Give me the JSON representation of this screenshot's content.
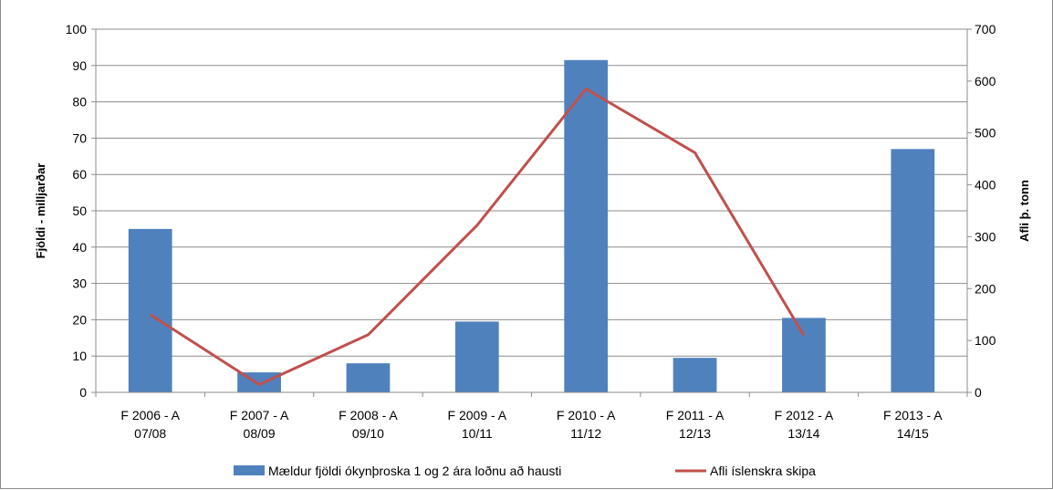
{
  "chart_data": {
    "type": "bar",
    "categories": [
      [
        "F 2006 - A",
        "07/08"
      ],
      [
        "F 2007 - A",
        "08/09"
      ],
      [
        "F 2008 - A",
        "09/10"
      ],
      [
        "F 2009 - A",
        "10/11"
      ],
      [
        "F 2010 - A",
        "11/12"
      ],
      [
        "F 2011 - A",
        "12/13"
      ],
      [
        "F 2012 - A",
        "13/14"
      ],
      [
        "F 2013 - A",
        "14/15"
      ]
    ],
    "ylabel": "Fjöldi - milljarðar",
    "y2label": "Afli þ. tonn",
    "ylim": [
      0,
      100
    ],
    "y2lim": [
      0,
      700
    ],
    "yticks": [
      "0",
      "10",
      "20",
      "30",
      "40",
      "50",
      "60",
      "70",
      "80",
      "90",
      "100"
    ],
    "y2ticks": [
      "0",
      "100",
      "200",
      "300",
      "400",
      "500",
      "600",
      "700"
    ],
    "series": [
      {
        "name": "Mældur fjöldi ókynþroska 1 og 2 ára loðnu að hausti",
        "type": "bar",
        "axis": "left",
        "color": "#4F81BD",
        "values": [
          45,
          5.5,
          8,
          19.5,
          91.5,
          9.5,
          20.5,
          67
        ]
      },
      {
        "name": "Afli íslenskra skipa",
        "type": "line",
        "axis": "right",
        "color": "#C0504D",
        "values": [
          150,
          15,
          111,
          322,
          585,
          462,
          110,
          null
        ]
      }
    ],
    "grid": "horizontal",
    "legend": "bottom"
  }
}
